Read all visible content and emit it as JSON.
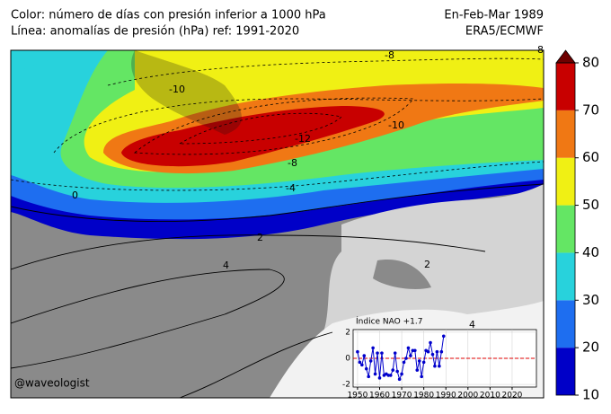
{
  "header": {
    "left": [
      "Color: número de días con presión inferior a 1000 hPa",
      "Línea: anomalías de presión (hPa) ref: 1991-2020"
    ],
    "right": [
      "En-Feb-Mar 1989",
      "ERA5/ECMWF"
    ]
  },
  "contour_labels": [
    "-8",
    "-10",
    "-12",
    "-10",
    "-8",
    "-4",
    "0",
    "2",
    "4",
    "-8",
    "2",
    "4"
  ],
  "watermark": "@waveologist",
  "colorbar": {
    "ticks": [
      10,
      20,
      30,
      40,
      50,
      60,
      70,
      80
    ],
    "colors": [
      "#0000c8",
      "#1e6ef0",
      "#28d2dc",
      "#64e664",
      "#f0f014",
      "#f07814",
      "#c80000"
    ],
    "extend_color": "#6e0000"
  },
  "inset_chart": {
    "type": "line",
    "title": "Índice NAO +1.7",
    "color": "#0000cc",
    "x": [
      1950,
      1951,
      1952,
      1953,
      1954,
      1955,
      1956,
      1957,
      1958,
      1959,
      1960,
      1961,
      1962,
      1963,
      1964,
      1965,
      1966,
      1967,
      1968,
      1969,
      1970,
      1971,
      1972,
      1973,
      1974,
      1975,
      1976,
      1977,
      1978,
      1979,
      1980,
      1981,
      1982,
      1983,
      1984,
      1985,
      1986,
      1987,
      1988,
      1989
    ],
    "values": [
      0.5,
      -0.3,
      -0.5,
      0.2,
      -0.8,
      -1.4,
      -0.2,
      0.8,
      -1.2,
      0.4,
      -1.5,
      0.4,
      -1.3,
      -1.2,
      -1.3,
      -1.3,
      -0.9,
      0.4,
      -1.0,
      -1.6,
      -1.2,
      -0.3,
      0.0,
      0.8,
      0.2,
      0.6,
      0.6,
      -0.9,
      -0.2,
      -1.4,
      -0.3,
      0.6,
      0.5,
      1.2,
      0.3,
      -0.6,
      0.5,
      -0.6,
      0.5,
      1.7
    ],
    "xlim": [
      1948,
      2031
    ],
    "xticks": [
      1950,
      1960,
      1970,
      1980,
      1990,
      2000,
      2010,
      2020
    ],
    "ylim": [
      -2.2,
      2.2
    ],
    "yticks": [
      -2,
      0,
      2
    ],
    "reference_line": {
      "value": 0,
      "color": "#e00000"
    }
  }
}
